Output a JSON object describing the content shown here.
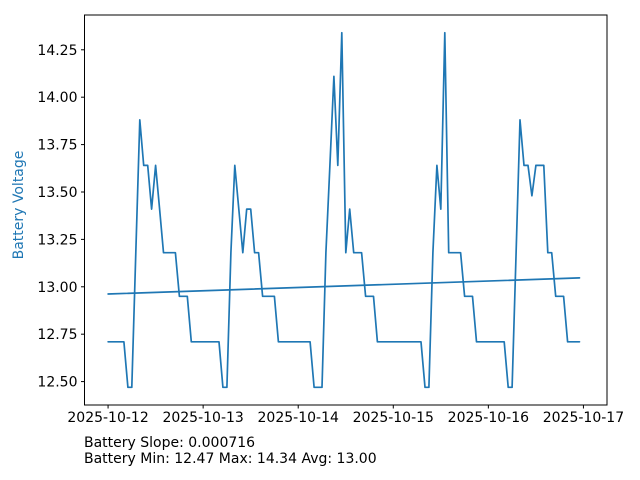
{
  "chart_data": {
    "type": "line",
    "title": "",
    "xlabel": "",
    "ylabel": "Battery Voltage",
    "grid": false,
    "legend": "none",
    "line_color": "#1f77b4",
    "axes_color": "#000000",
    "ylabel_color": "#1f77b4",
    "xlim_hours": [
      -5.95,
      125.95
    ],
    "ylim": [
      12.3765,
      14.4335
    ],
    "x_ticks": [
      {
        "hour": 0,
        "label": "2025-10-12"
      },
      {
        "hour": 24,
        "label": "2025-10-13"
      },
      {
        "hour": 48,
        "label": "2025-10-14"
      },
      {
        "hour": 72,
        "label": "2025-10-15"
      },
      {
        "hour": 96,
        "label": "2025-10-16"
      },
      {
        "hour": 120,
        "label": "2025-10-17"
      }
    ],
    "y_ticks": [
      12.5,
      12.75,
      13.0,
      13.25,
      13.5,
      13.75,
      14.0,
      14.25
    ],
    "x_unit": "hours since 2025-10-12 00:00",
    "series": [
      {
        "name": "battery-voltage-line",
        "x_step_hours": 1,
        "values": [
          12.71,
          12.71,
          12.71,
          12.71,
          12.71,
          12.47,
          12.47,
          13.18,
          13.88,
          13.64,
          13.64,
          13.41,
          13.64,
          13.41,
          13.18,
          13.18,
          13.18,
          13.18,
          12.95,
          12.95,
          12.95,
          12.71,
          12.71,
          12.71,
          12.71,
          12.71,
          12.71,
          12.71,
          12.71,
          12.47,
          12.47,
          13.18,
          13.64,
          13.41,
          13.18,
          13.41,
          13.41,
          13.18,
          13.18,
          12.95,
          12.95,
          12.95,
          12.95,
          12.71,
          12.71,
          12.71,
          12.71,
          12.71,
          12.71,
          12.71,
          12.71,
          12.71,
          12.47,
          12.47,
          12.47,
          13.18,
          13.64,
          14.11,
          13.64,
          14.34,
          13.18,
          13.41,
          13.18,
          13.18,
          13.18,
          12.95,
          12.95,
          12.95,
          12.71,
          12.71,
          12.71,
          12.71,
          12.71,
          12.71,
          12.71,
          12.71,
          12.71,
          12.71,
          12.71,
          12.71,
          12.47,
          12.47,
          13.18,
          13.64,
          13.41,
          14.34,
          13.18,
          13.18,
          13.18,
          13.18,
          12.95,
          12.95,
          12.95,
          12.71,
          12.71,
          12.71,
          12.71,
          12.71,
          12.71,
          12.71,
          12.71,
          12.47,
          12.47,
          13.18,
          13.88,
          13.64,
          13.64,
          13.48,
          13.64,
          13.64,
          13.64,
          13.18,
          13.18,
          12.95,
          12.95,
          12.95,
          12.71,
          12.71,
          12.71,
          12.71
        ]
      },
      {
        "name": "trend-line",
        "x_hours": [
          0,
          119
        ],
        "values": [
          12.962,
          13.047
        ]
      }
    ],
    "stats": {
      "slope_per_hour": 0.000716,
      "min": 12.47,
      "max": 14.34,
      "avg": 13.0
    },
    "annotations": [
      "Battery Slope: 0.000716",
      "Battery Min: 12.47 Max: 14.34 Avg: 13.00"
    ]
  }
}
